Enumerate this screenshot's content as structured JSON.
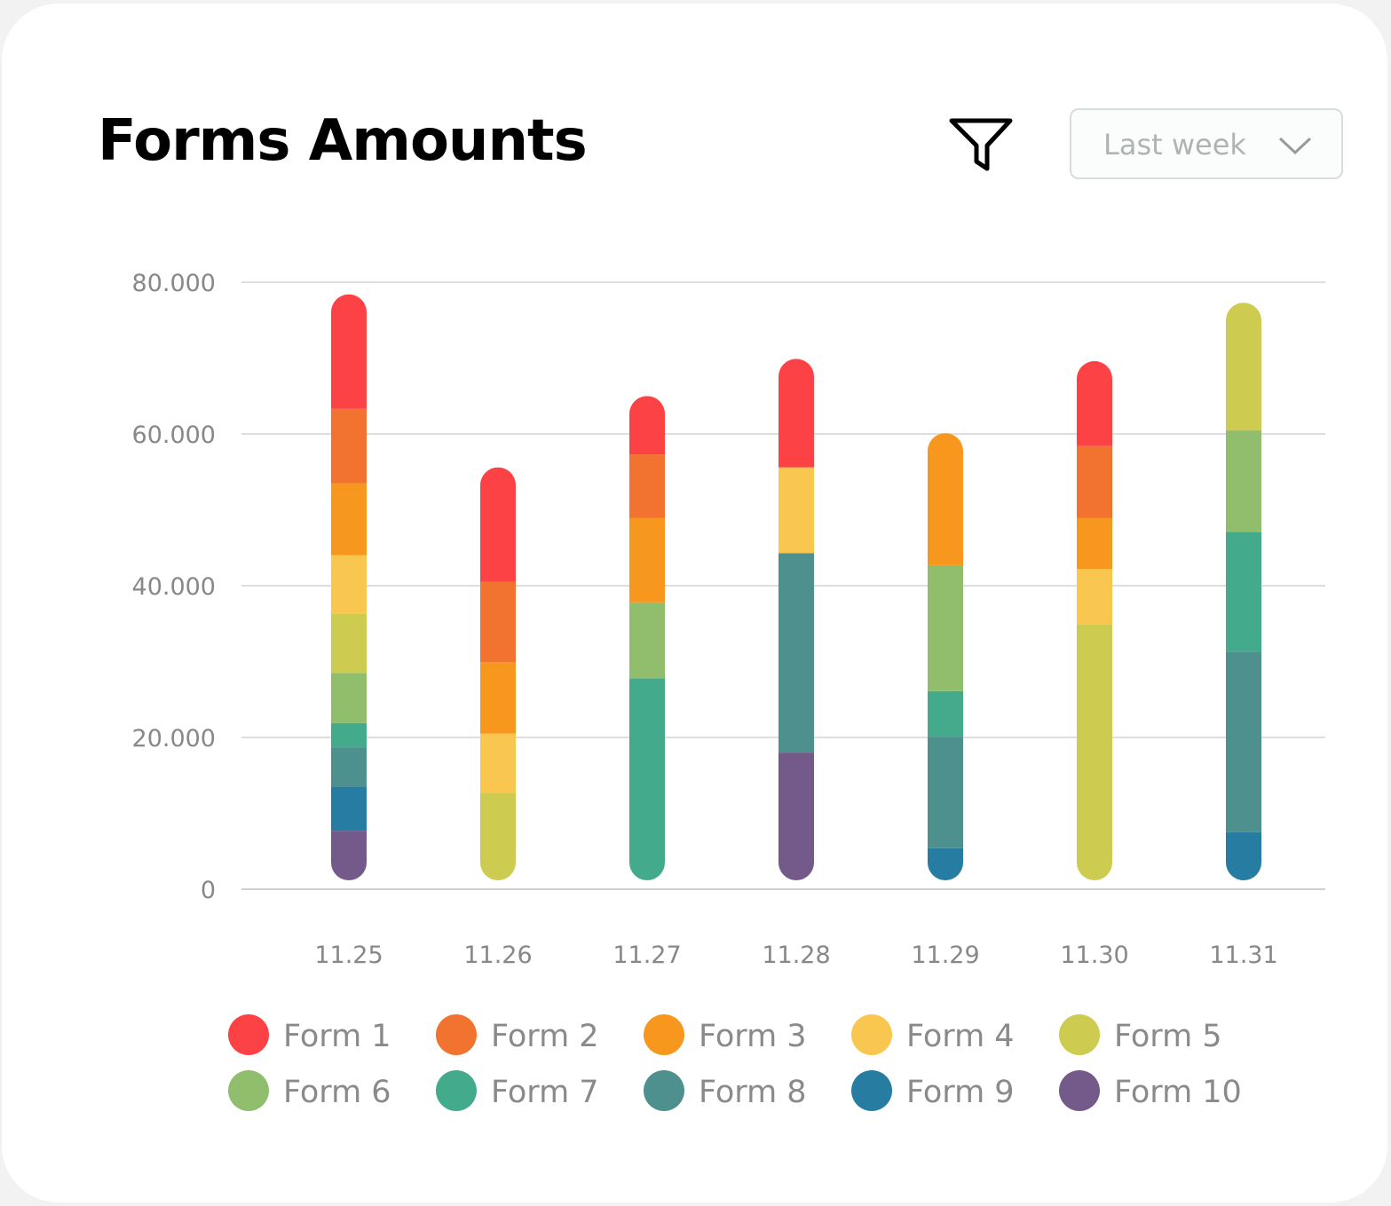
{
  "header": {
    "title": "Forms Amounts",
    "filter_icon": "filter-icon",
    "range_dropdown": {
      "selected": "Last week",
      "icon": "chevron-down-icon"
    }
  },
  "chart_data": {
    "type": "bar",
    "stacked": true,
    "title": "Forms Amounts",
    "xlabel": "",
    "ylabel": "",
    "ylim": [
      0,
      80000
    ],
    "yticks": [
      0,
      20000,
      40000,
      60000,
      80000
    ],
    "ytick_labels": [
      "0",
      "20.000",
      "40.000",
      "60.000",
      "80.000"
    ],
    "grid": true,
    "legend_placement": "bottom",
    "categories": [
      "11.25",
      "11.26",
      "11.27",
      "11.28",
      "11.29",
      "11.30",
      "11.31"
    ],
    "series": [
      {
        "name": "Form 1",
        "color": "#fc4245",
        "values": [
          15100,
          15100,
          7700,
          14300,
          0,
          11200,
          0
        ]
      },
      {
        "name": "Form 2",
        "color": "#f2732f",
        "values": [
          9800,
          10600,
          8400,
          0,
          0,
          9500,
          0
        ]
      },
      {
        "name": "Form 3",
        "color": "#f8971e",
        "values": [
          9500,
          9400,
          11100,
          0,
          17400,
          6700,
          0
        ]
      },
      {
        "name": "Form 4",
        "color": "#f9c74f",
        "values": [
          7700,
          7800,
          0,
          11300,
          0,
          7300,
          0
        ]
      },
      {
        "name": "Form 5",
        "color": "#cdcb50",
        "values": [
          7800,
          12700,
          0,
          0,
          0,
          34900,
          16800
        ]
      },
      {
        "name": "Form 6",
        "color": "#90be6d",
        "values": [
          6600,
          0,
          10000,
          0,
          16600,
          0,
          13400
        ]
      },
      {
        "name": "Form 7",
        "color": "#43aa8b",
        "values": [
          3200,
          0,
          27800,
          0,
          6000,
          0,
          15800
        ]
      },
      {
        "name": "Form 8",
        "color": "#4d908e",
        "values": [
          5200,
          0,
          0,
          26300,
          14700,
          0,
          23800
        ]
      },
      {
        "name": "Form 9",
        "color": "#277da1",
        "values": [
          5800,
          0,
          0,
          0,
          5400,
          0,
          7500
        ]
      },
      {
        "name": "Form 10",
        "color": "#735a8a",
        "values": [
          7700,
          0,
          0,
          18000,
          0,
          0,
          0
        ]
      }
    ]
  }
}
